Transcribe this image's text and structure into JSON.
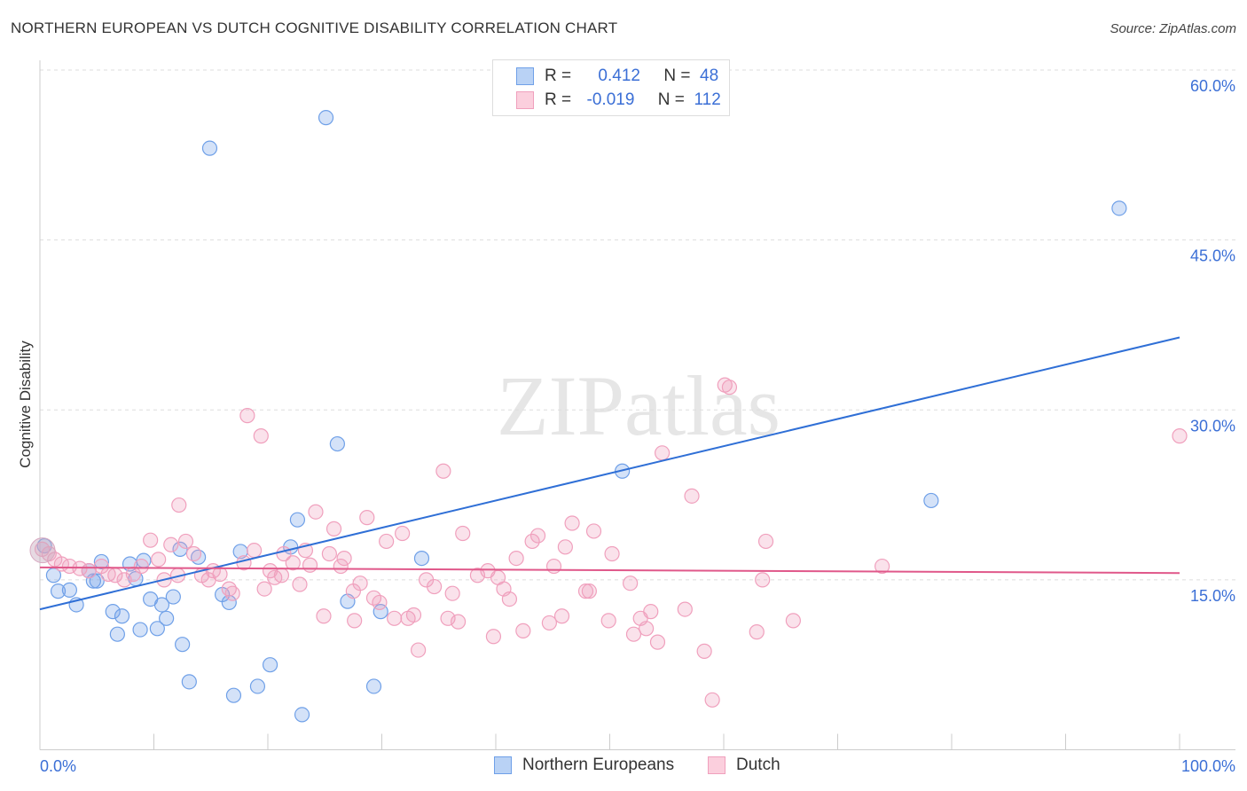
{
  "title": "NORTHERN EUROPEAN VS DUTCH COGNITIVE DISABILITY CORRELATION CHART",
  "source": "Source: ZipAtlas.com",
  "watermark": "ZIPatlas",
  "colors": {
    "blue": "#6fa0e8",
    "blue_line": "#2f6fd6",
    "pink": "#f0a0bd",
    "pink_line": "#e0588a",
    "tick": "#3b6fd6"
  },
  "legend": {
    "rows": [
      {
        "r_label": "R =",
        "r_value": "0.412",
        "n_label": "N =",
        "n_value": "48"
      },
      {
        "r_label": "R =",
        "r_value": "-0.019",
        "n_label": "N =",
        "n_value": "112"
      }
    ]
  },
  "chart_data": {
    "type": "scatter",
    "title": "NORTHERN EUROPEAN VS DUTCH COGNITIVE DISABILITY CORRELATION CHART",
    "xlabel": "",
    "ylabel": "Cognitive Disability",
    "xlim": [
      0,
      100
    ],
    "ylim": [
      0,
      60
    ],
    "x_tick_labels": [
      "0.0%",
      "100.0%"
    ],
    "y_ticks": [
      15,
      30,
      45,
      60
    ],
    "y_tick_labels": [
      "15.0%",
      "30.0%",
      "45.0%",
      "60.0%"
    ],
    "grid": true,
    "legend_position": "bottom",
    "series": [
      {
        "name": "Northern Europeans",
        "trend": [
          [
            0,
            12.4
          ],
          [
            100,
            36.4
          ]
        ],
        "points": [
          [
            0.4,
            18.0
          ],
          [
            1.2,
            15.4
          ],
          [
            1.6,
            14.0
          ],
          [
            2.6,
            14.1
          ],
          [
            3.2,
            12.8
          ],
          [
            4.3,
            15.8
          ],
          [
            4.7,
            14.9
          ],
          [
            5.0,
            14.9
          ],
          [
            5.4,
            16.6
          ],
          [
            6.4,
            12.2
          ],
          [
            6.8,
            10.2
          ],
          [
            7.2,
            11.8
          ],
          [
            7.9,
            16.4
          ],
          [
            8.4,
            15.1
          ],
          [
            8.8,
            10.6
          ],
          [
            9.1,
            16.7
          ],
          [
            9.7,
            13.3
          ],
          [
            10.3,
            10.7
          ],
          [
            10.7,
            12.8
          ],
          [
            11.1,
            11.6
          ],
          [
            11.7,
            13.5
          ],
          [
            12.3,
            17.7
          ],
          [
            12.5,
            9.3
          ],
          [
            13.1,
            6.0
          ],
          [
            13.9,
            17.0
          ],
          [
            14.9,
            53.1
          ],
          [
            16.0,
            13.7
          ],
          [
            16.6,
            13.0
          ],
          [
            17.0,
            4.8
          ],
          [
            17.6,
            17.5
          ],
          [
            19.1,
            5.6
          ],
          [
            20.2,
            7.5
          ],
          [
            22.0,
            17.9
          ],
          [
            22.6,
            20.3
          ],
          [
            23.0,
            3.1
          ],
          [
            25.1,
            55.8
          ],
          [
            26.1,
            27.0
          ],
          [
            27.0,
            13.1
          ],
          [
            29.3,
            5.6
          ],
          [
            29.9,
            12.2
          ],
          [
            33.5,
            16.9
          ],
          [
            51.1,
            24.6
          ],
          [
            78.2,
            22.0
          ],
          [
            94.7,
            47.8
          ]
        ]
      },
      {
        "name": "Dutch",
        "trend": [
          [
            0,
            16.1
          ],
          [
            100,
            15.6
          ]
        ],
        "points": [
          [
            0.2,
            17.7
          ],
          [
            0.8,
            17.3
          ],
          [
            1.3,
            16.8
          ],
          [
            1.9,
            16.4
          ],
          [
            2.6,
            16.2
          ],
          [
            3.5,
            16.0
          ],
          [
            4.3,
            15.8
          ],
          [
            5.4,
            16.2
          ],
          [
            6.0,
            15.5
          ],
          [
            6.6,
            15.4
          ],
          [
            7.4,
            15.0
          ],
          [
            8.2,
            15.5
          ],
          [
            8.9,
            16.2
          ],
          [
            9.7,
            18.5
          ],
          [
            10.4,
            16.8
          ],
          [
            10.9,
            15.0
          ],
          [
            11.5,
            18.1
          ],
          [
            12.1,
            15.4
          ],
          [
            12.2,
            21.6
          ],
          [
            12.8,
            18.4
          ],
          [
            13.5,
            17.3
          ],
          [
            14.2,
            15.4
          ],
          [
            14.8,
            15.0
          ],
          [
            15.2,
            15.8
          ],
          [
            15.8,
            15.5
          ],
          [
            16.6,
            14.2
          ],
          [
            16.9,
            13.8
          ],
          [
            17.9,
            16.5
          ],
          [
            18.2,
            29.5
          ],
          [
            18.8,
            17.6
          ],
          [
            19.4,
            27.7
          ],
          [
            19.7,
            14.2
          ],
          [
            20.2,
            15.8
          ],
          [
            20.6,
            15.2
          ],
          [
            21.2,
            15.4
          ],
          [
            21.4,
            17.3
          ],
          [
            22.2,
            16.5
          ],
          [
            22.8,
            14.6
          ],
          [
            23.3,
            17.6
          ],
          [
            23.7,
            16.3
          ],
          [
            24.2,
            21.0
          ],
          [
            24.9,
            11.8
          ],
          [
            25.4,
            17.3
          ],
          [
            25.8,
            19.5
          ],
          [
            26.4,
            16.2
          ],
          [
            26.7,
            16.9
          ],
          [
            27.5,
            14.0
          ],
          [
            27.6,
            11.4
          ],
          [
            28.1,
            14.7
          ],
          [
            28.7,
            20.5
          ],
          [
            29.3,
            13.4
          ],
          [
            29.8,
            13.0
          ],
          [
            30.4,
            18.4
          ],
          [
            31.1,
            11.6
          ],
          [
            31.8,
            19.1
          ],
          [
            32.3,
            11.6
          ],
          [
            32.8,
            11.9
          ],
          [
            33.2,
            8.8
          ],
          [
            33.9,
            15.0
          ],
          [
            34.6,
            14.4
          ],
          [
            35.4,
            24.6
          ],
          [
            35.8,
            11.6
          ],
          [
            36.2,
            13.8
          ],
          [
            36.7,
            11.3
          ],
          [
            37.1,
            19.1
          ],
          [
            38.4,
            15.4
          ],
          [
            39.3,
            15.8
          ],
          [
            39.8,
            10.0
          ],
          [
            40.2,
            15.2
          ],
          [
            40.7,
            14.2
          ],
          [
            41.2,
            13.3
          ],
          [
            41.8,
            16.9
          ],
          [
            42.4,
            10.5
          ],
          [
            43.2,
            18.4
          ],
          [
            43.7,
            18.9
          ],
          [
            45.1,
            16.2
          ],
          [
            44.7,
            11.2
          ],
          [
            45.8,
            11.8
          ],
          [
            46.1,
            17.9
          ],
          [
            46.7,
            20.0
          ],
          [
            47.9,
            14.0
          ],
          [
            48.2,
            14.0
          ],
          [
            48.6,
            19.3
          ],
          [
            49.9,
            11.4
          ],
          [
            50.2,
            17.3
          ],
          [
            51.8,
            14.7
          ],
          [
            52.1,
            10.2
          ],
          [
            52.7,
            11.6
          ],
          [
            53.2,
            10.7
          ],
          [
            53.6,
            12.2
          ],
          [
            54.2,
            9.5
          ],
          [
            54.6,
            26.2
          ],
          [
            56.6,
            12.4
          ],
          [
            57.2,
            22.4
          ],
          [
            58.3,
            8.7
          ],
          [
            59.0,
            4.4
          ],
          [
            60.1,
            32.2
          ],
          [
            60.5,
            32.0
          ],
          [
            63.4,
            15.0
          ],
          [
            62.9,
            10.4
          ],
          [
            63.7,
            18.4
          ],
          [
            66.1,
            11.4
          ],
          [
            73.9,
            16.2
          ],
          [
            100,
            27.7
          ]
        ]
      }
    ]
  }
}
